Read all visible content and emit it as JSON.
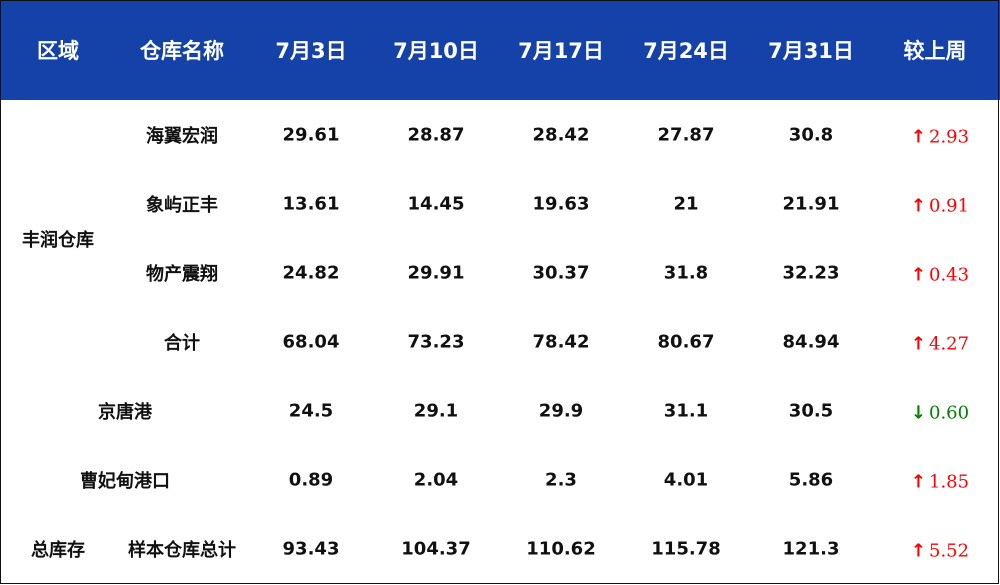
{
  "colors": {
    "header_bg": "#1442A8",
    "up": "#FF0000",
    "down": "#008000"
  },
  "headers": [
    "区域",
    "仓库名称",
    "7月3日",
    "7月10日",
    "7月17日",
    "7月24日",
    "7月31日",
    "较上周"
  ],
  "groups": [
    {
      "region": "丰润仓库",
      "rows": [
        0,
        1,
        2,
        3
      ]
    },
    {
      "region": "总库存",
      "rows": [
        6
      ]
    }
  ],
  "rows": [
    {
      "name": "海翼宏润",
      "values": [
        "29.61",
        "28.87",
        "28.42",
        "27.87",
        "30.8"
      ],
      "change": {
        "direction": "up",
        "icon": "arrow-up-icon",
        "value": "2.93"
      }
    },
    {
      "name": "象屿正丰",
      "values": [
        "13.61",
        "14.45",
        "19.63",
        "21",
        "21.91"
      ],
      "change": {
        "direction": "up",
        "icon": "arrow-up-icon",
        "value": "0.91"
      }
    },
    {
      "name": "物产震翔",
      "values": [
        "24.82",
        "29.91",
        "30.37",
        "31.8",
        "32.23"
      ],
      "change": {
        "direction": "up",
        "icon": "arrow-up-icon",
        "value": "0.43"
      }
    },
    {
      "name": "合计",
      "values": [
        "68.04",
        "73.23",
        "78.42",
        "80.67",
        "84.94"
      ],
      "change": {
        "direction": "up",
        "icon": "arrow-up-icon",
        "value": "4.27"
      }
    },
    {
      "name": "京唐港",
      "values": [
        "24.5",
        "29.1",
        "29.9",
        "31.1",
        "30.5"
      ],
      "change": {
        "direction": "down",
        "icon": "arrow-down-icon",
        "value": "0.60"
      }
    },
    {
      "name": "曹妃甸港口",
      "values": [
        "0.89",
        "2.04",
        "2.3",
        "4.01",
        "5.86"
      ],
      "change": {
        "direction": "up",
        "icon": "arrow-up-icon",
        "value": "1.85"
      }
    },
    {
      "name": "样本仓库总计",
      "values": [
        "93.43",
        "104.37",
        "110.62",
        "115.78",
        "121.3"
      ],
      "change": {
        "direction": "up",
        "icon": "arrow-up-icon",
        "value": "5.52"
      }
    }
  ]
}
